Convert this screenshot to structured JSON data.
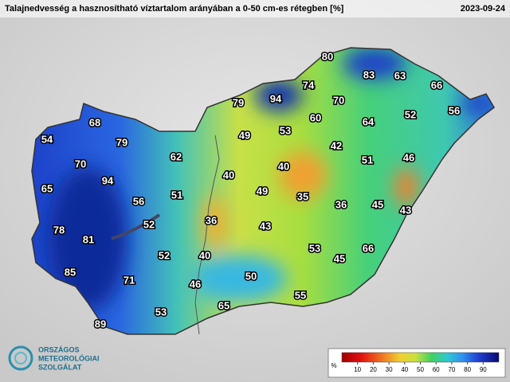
{
  "header": {
    "title": "Talajnedvesség a hasznosítható víztartalom arányában a 0-50 cm-es rétegben [%]",
    "date": "2023-09-24"
  },
  "stations": [
    80,
    83,
    63,
    66,
    74,
    94,
    79,
    70,
    52,
    56,
    53,
    60,
    64,
    49,
    68,
    54,
    79,
    62,
    42,
    51,
    46,
    40,
    70,
    40,
    94,
    65,
    49,
    35,
    56,
    51,
    36,
    45,
    43,
    36,
    52,
    43,
    78,
    81,
    53,
    45,
    66,
    52,
    40,
    85,
    71,
    50,
    46,
    55,
    65,
    53,
    89
  ],
  "legend": {
    "unit": "%",
    "range": [
      0,
      100
    ],
    "ticks": [
      10,
      20,
      30,
      40,
      50,
      60,
      70,
      80,
      90
    ]
  },
  "logo": {
    "lines": [
      "ORSZÁGOS",
      "METEOROLÓGIAI",
      "SZOLGÁLAT"
    ]
  }
}
